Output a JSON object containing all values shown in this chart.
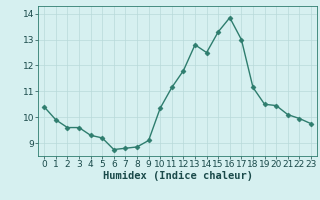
{
  "x": [
    0,
    1,
    2,
    3,
    4,
    5,
    6,
    7,
    8,
    9,
    10,
    11,
    12,
    13,
    14,
    15,
    16,
    17,
    18,
    19,
    20,
    21,
    22,
    23
  ],
  "y": [
    10.4,
    9.9,
    9.6,
    9.6,
    9.3,
    9.2,
    8.75,
    8.8,
    8.85,
    9.1,
    10.35,
    11.15,
    11.8,
    12.8,
    12.5,
    13.3,
    13.85,
    13.0,
    11.15,
    10.5,
    10.45,
    10.1,
    9.95,
    9.75
  ],
  "line_color": "#2e7d6e",
  "marker": "D",
  "marker_size": 2.5,
  "bg_color": "#d6f0f0",
  "grid_color": "#b8dada",
  "xlabel": "Humidex (Indice chaleur)",
  "xlim": [
    -0.5,
    23.5
  ],
  "ylim": [
    8.5,
    14.3
  ],
  "yticks": [
    9,
    10,
    11,
    12,
    13,
    14
  ],
  "xticks": [
    0,
    1,
    2,
    3,
    4,
    5,
    6,
    7,
    8,
    9,
    10,
    11,
    12,
    13,
    14,
    15,
    16,
    17,
    18,
    19,
    20,
    21,
    22,
    23
  ],
  "label_fontsize": 7.5,
  "tick_fontsize": 6.5
}
